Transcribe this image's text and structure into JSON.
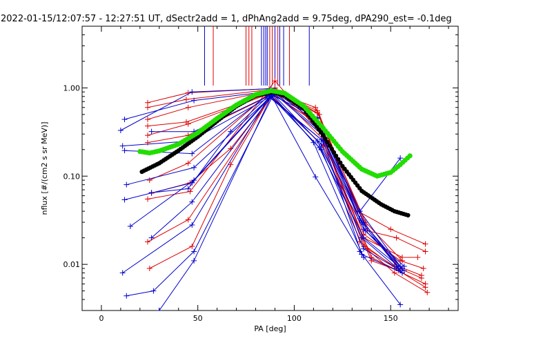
{
  "chart_data": {
    "type": "scatter",
    "title": "2022-01-15/12:07:57 - 12:27:51 UT, dSectr2add = 1, dPhAng2add = 9.75deg, dPA290_est=  -0.1deg",
    "xlabel": "PA [deg]",
    "ylabel": "nflux [#/(cm2 s sr MeV)]",
    "xlim": [
      -10,
      185
    ],
    "ylim": [
      0.003,
      5.0
    ],
    "yscale": "log",
    "xticks": [
      {
        "v": 0,
        "label": "0"
      },
      {
        "v": 50,
        "label": "50"
      },
      {
        "v": 100,
        "label": "100"
      },
      {
        "v": 150,
        "label": "150"
      }
    ],
    "yticks": [
      {
        "v": 0.01,
        "label": "0.01"
      },
      {
        "v": 0.1,
        "label": "0.10"
      },
      {
        "v": 1.0,
        "label": "1.00"
      }
    ],
    "colors": {
      "blue": "#0000cc",
      "red": "#dd0000",
      "black": "#000000",
      "green": "#22dd00"
    },
    "vlines": [
      {
        "x": 53.5,
        "color": "blue"
      },
      {
        "x": 58.0,
        "color": "red"
      },
      {
        "x": 75.0,
        "color": "red"
      },
      {
        "x": 76.5,
        "color": "red"
      },
      {
        "x": 78.0,
        "color": "red"
      },
      {
        "x": 83.0,
        "color": "blue"
      },
      {
        "x": 84.2,
        "color": "blue"
      },
      {
        "x": 85.2,
        "color": "blue"
      },
      {
        "x": 86.0,
        "color": "blue"
      },
      {
        "x": 87.3,
        "color": "red"
      },
      {
        "x": 88.6,
        "color": "red"
      },
      {
        "x": 90.0,
        "color": "blue"
      },
      {
        "x": 91.5,
        "color": "red"
      },
      {
        "x": 92.5,
        "color": "blue"
      },
      {
        "x": 94.5,
        "color": "blue"
      },
      {
        "x": 97.5,
        "color": "red"
      },
      {
        "x": 107.8,
        "color": "blue"
      }
    ],
    "series": [
      {
        "color": "red",
        "points": [
          [
            24,
            0.68
          ],
          [
            45,
            0.88
          ],
          [
            87,
            0.98
          ],
          [
            112,
            0.55
          ],
          [
            137,
            0.028
          ],
          [
            154,
            0.0095
          ],
          [
            166,
            0.0075
          ]
        ]
      },
      {
        "color": "red",
        "points": [
          [
            24,
            0.6
          ],
          [
            44,
            0.74
          ],
          [
            88,
            0.96
          ],
          [
            113,
            0.5
          ],
          [
            136,
            0.022
          ],
          [
            155,
            0.011
          ],
          [
            167,
            0.009
          ]
        ]
      },
      {
        "color": "red",
        "points": [
          [
            24,
            0.44
          ],
          [
            45,
            0.6
          ],
          [
            88,
            0.93
          ],
          [
            111,
            0.6
          ],
          [
            133,
            0.04
          ],
          [
            150,
            0.025
          ],
          [
            168,
            0.017
          ]
        ]
      },
      {
        "color": "red",
        "points": [
          [
            24,
            0.37
          ],
          [
            44,
            0.41
          ],
          [
            89,
            0.9
          ],
          [
            112,
            0.46
          ],
          [
            138,
            0.024
          ],
          [
            153,
            0.02
          ],
          [
            168,
            0.014
          ]
        ]
      },
      {
        "color": "red",
        "points": [
          [
            24,
            0.29
          ],
          [
            45,
            0.39
          ],
          [
            88,
            0.87
          ],
          [
            112,
            0.4
          ],
          [
            136,
            0.02
          ],
          [
            156,
            0.012
          ],
          [
            164,
            0.012
          ]
        ]
      },
      {
        "color": "red",
        "points": [
          [
            24,
            0.24
          ],
          [
            45,
            0.29
          ],
          [
            89,
            0.85
          ],
          [
            113,
            0.38
          ],
          [
            134,
            0.018
          ],
          [
            156,
            0.008
          ],
          [
            168,
            0.0055
          ]
        ]
      },
      {
        "color": "red",
        "points": [
          [
            25,
            0.09
          ],
          [
            45,
            0.14
          ],
          [
            90,
            1.0
          ],
          [
            114,
            0.34
          ],
          [
            136,
            0.016
          ],
          [
            152,
            0.008
          ],
          [
            169,
            0.0048
          ]
        ]
      },
      {
        "color": "red",
        "points": [
          [
            24,
            0.055
          ],
          [
            46,
            0.067
          ],
          [
            90,
            1.2
          ],
          [
            114,
            0.3
          ],
          [
            138,
            0.015
          ],
          [
            152,
            0.0095
          ],
          [
            166,
            0.007
          ]
        ]
      },
      {
        "color": "red",
        "points": [
          [
            24,
            0.018
          ],
          [
            45,
            0.032
          ],
          [
            90,
            0.92
          ],
          [
            115,
            0.26
          ],
          [
            140,
            0.012
          ],
          [
            156,
            0.008
          ],
          [
            168,
            0.006
          ]
        ]
      },
      {
        "color": "red",
        "points": [
          [
            25,
            0.009
          ],
          [
            47,
            0.016
          ],
          [
            67,
            0.135
          ],
          [
            88,
            0.82
          ],
          [
            115,
            0.22
          ],
          [
            140,
            0.011
          ],
          [
            154,
            0.0085
          ]
        ]
      },
      {
        "color": "red",
        "points": [
          [
            26,
            0.064
          ],
          [
            46,
            0.084
          ],
          [
            67,
            0.205
          ],
          [
            91,
            0.94
          ],
          [
            112,
            0.52
          ],
          [
            137,
            0.03
          ],
          [
            156,
            0.011
          ]
        ]
      },
      {
        "color": "blue",
        "points": [
          [
            10,
            0.33
          ],
          [
            47,
            0.9
          ],
          [
            88,
            0.98
          ],
          [
            112,
            0.4
          ],
          [
            134,
            0.04
          ],
          [
            155,
            0.0095
          ]
        ]
      },
      {
        "color": "blue",
        "points": [
          [
            12,
            0.44
          ],
          [
            48,
            0.72
          ],
          [
            89,
            0.92
          ],
          [
            113,
            0.33
          ],
          [
            135,
            0.03
          ],
          [
            154,
            0.009
          ]
        ]
      },
      {
        "color": "blue",
        "points": [
          [
            11,
            0.22
          ],
          [
            46,
            0.25
          ],
          [
            90,
            0.85
          ],
          [
            114,
            0.3
          ],
          [
            136,
            0.03
          ],
          [
            156,
            0.008
          ]
        ]
      },
      {
        "color": "blue",
        "points": [
          [
            12,
            0.195
          ],
          [
            47,
            0.18
          ],
          [
            86,
            0.82
          ],
          [
            114,
            0.26
          ],
          [
            137,
            0.024
          ],
          [
            156,
            0.009
          ]
        ]
      },
      {
        "color": "blue",
        "points": [
          [
            13,
            0.08
          ],
          [
            48,
            0.125
          ],
          [
            88,
            0.8
          ],
          [
            113,
            0.21
          ],
          [
            136,
            0.02
          ],
          [
            157,
            0.0085
          ]
        ]
      },
      {
        "color": "blue",
        "points": [
          [
            12,
            0.054
          ],
          [
            47,
            0.084
          ],
          [
            89,
            0.85
          ],
          [
            112,
            0.25
          ],
          [
            136,
            0.025
          ],
          [
            157,
            0.0095
          ]
        ]
      },
      {
        "color": "blue",
        "points": [
          [
            15,
            0.027
          ],
          [
            48,
            0.09
          ],
          [
            88,
            0.83
          ],
          [
            111,
            0.098
          ],
          [
            134,
            0.014
          ],
          [
            155,
            0.0035
          ]
        ]
      },
      {
        "color": "blue",
        "points": [
          [
            26,
            0.02
          ],
          [
            47,
            0.051
          ],
          [
            88,
            0.8
          ],
          [
            114,
            0.23
          ],
          [
            135,
            0.02
          ],
          [
            155,
            0.0085
          ]
        ]
      },
      {
        "color": "blue",
        "points": [
          [
            11,
            0.008
          ],
          [
            47,
            0.028
          ],
          [
            87,
            0.8
          ],
          [
            115,
            0.25
          ],
          [
            135,
            0.013
          ],
          [
            156,
            0.008
          ]
        ]
      },
      {
        "color": "blue",
        "points": [
          [
            13,
            0.0044
          ],
          [
            27,
            0.005
          ],
          [
            48,
            0.014
          ],
          [
            89,
            0.82
          ],
          [
            110,
            0.24
          ],
          [
            136,
            0.012
          ]
        ]
      },
      {
        "color": "blue",
        "points": [
          [
            30,
            0.003
          ],
          [
            48,
            0.011
          ],
          [
            88,
            0.8
          ],
          [
            114,
            0.2
          ],
          [
            136,
            0.015
          ],
          [
            153,
            0.009
          ]
        ]
      },
      {
        "color": "blue",
        "points": [
          [
            26,
            0.32
          ],
          [
            48,
            0.32
          ],
          [
            88,
            0.84
          ],
          [
            112,
            0.46
          ],
          [
            134,
            0.033
          ],
          [
            156,
            0.009
          ]
        ]
      },
      {
        "color": "blue",
        "points": [
          [
            26,
            0.065
          ],
          [
            45,
            0.072
          ],
          [
            67,
            0.32
          ],
          [
            90,
            0.95
          ],
          [
            112,
            0.45
          ],
          [
            134,
            0.04
          ],
          [
            155,
            0.16
          ]
        ]
      }
    ],
    "black_fit": {
      "color": "black",
      "points": [
        [
          21,
          0.112
        ],
        [
          30,
          0.14
        ],
        [
          40,
          0.195
        ],
        [
          50,
          0.28
        ],
        [
          60,
          0.42
        ],
        [
          70,
          0.62
        ],
        [
          80,
          0.82
        ],
        [
          89,
          0.9
        ],
        [
          95,
          0.82
        ],
        [
          105,
          0.58
        ],
        [
          115,
          0.29
        ],
        [
          125,
          0.13
        ],
        [
          135,
          0.068
        ],
        [
          145,
          0.048
        ],
        [
          152,
          0.04
        ],
        [
          159,
          0.036
        ]
      ]
    },
    "green_fit": {
      "color": "green",
      "points": [
        [
          20,
          0.19
        ],
        [
          25,
          0.183
        ],
        [
          30,
          0.193
        ],
        [
          40,
          0.23
        ],
        [
          50,
          0.31
        ],
        [
          60,
          0.45
        ],
        [
          70,
          0.64
        ],
        [
          80,
          0.84
        ],
        [
          88,
          0.93
        ],
        [
          95,
          0.87
        ],
        [
          105,
          0.62
        ],
        [
          115,
          0.35
        ],
        [
          125,
          0.19
        ],
        [
          135,
          0.12
        ],
        [
          143,
          0.1
        ],
        [
          150,
          0.11
        ],
        [
          155,
          0.135
        ],
        [
          160,
          0.17
        ]
      ]
    }
  }
}
